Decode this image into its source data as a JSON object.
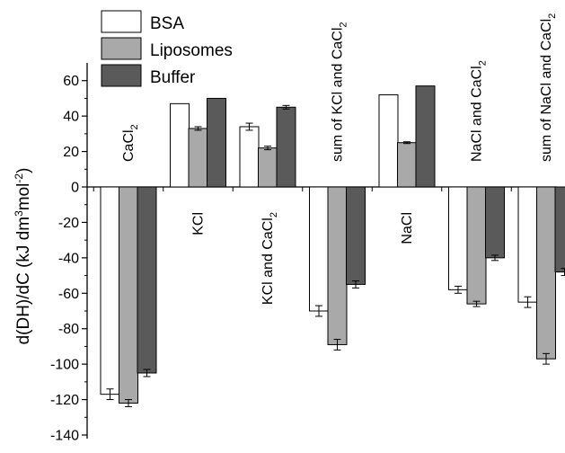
{
  "chart_data": {
    "type": "bar",
    "ylabel": "d(DH)/dC (kJ dm³mol⁻²)",
    "ylabel_parts": [
      "d(DH)/dC (kJ dm",
      "3",
      "mol",
      "-2",
      ")"
    ],
    "ylim": [
      -140,
      70
    ],
    "yticks": [
      -140,
      -120,
      -100,
      -80,
      -60,
      -40,
      -20,
      0,
      20,
      40,
      60
    ],
    "categories": [
      "CaCl2",
      "KCl",
      "KCl and CaCl2",
      "sum of KCl and CaCl2",
      "NaCl",
      "NaCl and CaCl2",
      "sum of NaCl and CaCl2"
    ],
    "category_labels": [
      {
        "base": "CaCl",
        "sub": "2"
      },
      {
        "base": "KCl",
        "sub": ""
      },
      {
        "base": "KCl and CaCl",
        "sub": "2"
      },
      {
        "base": "sum of KCl and CaCl",
        "sub": "2"
      },
      {
        "base": "NaCl",
        "sub": ""
      },
      {
        "base": "NaCl and CaCl",
        "sub": "2"
      },
      {
        "base": "sum of NaCl and CaCl",
        "sub": "2"
      }
    ],
    "legend_position": "top-left",
    "series": [
      {
        "name": "BSA",
        "color": "#ffffff",
        "values": [
          -117,
          47,
          34,
          -70,
          52,
          -58,
          -65
        ],
        "errors": [
          3,
          0,
          2,
          3,
          0,
          2,
          3
        ]
      },
      {
        "name": "Liposomes",
        "color": "#a9a9a9",
        "values": [
          -122,
          33,
          22,
          -89,
          25,
          -66,
          -97
        ],
        "errors": [
          2,
          1,
          1,
          3,
          0.5,
          1.5,
          3
        ]
      },
      {
        "name": "Buffer",
        "color": "#5a5a5a",
        "values": [
          -105,
          50,
          45,
          -55,
          57,
          -40,
          -48
        ],
        "errors": [
          2,
          0,
          1,
          2,
          0,
          1.5,
          2
        ]
      }
    ]
  }
}
